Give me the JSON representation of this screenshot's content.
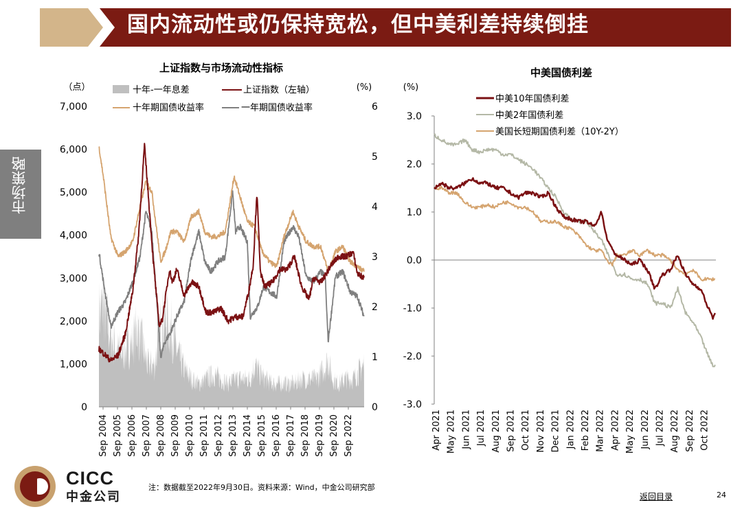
{
  "header": {
    "title": "国内流动性或仍保持宽松，但中美利差持续倒挂"
  },
  "side_tab": {
    "label": "市场策略"
  },
  "footer": {
    "note": "注：数据截至2022年9月30日。资料来源：Wind，中金公司研究部",
    "back_link": "返回目录",
    "page_number": "24",
    "logo_text": "CICC",
    "logo_cn": "中金公司"
  },
  "colors": {
    "maroon": "#7b1113",
    "gray": "#7f7f7f",
    "tan": "#d5a46f",
    "sage": "#b4b8a6",
    "fill": "#bfbfbf",
    "banner": "#7b1b13",
    "banner_tan": "#d3b58a"
  },
  "chart_data": [
    {
      "type": "line",
      "title": "上证指数与市场流动性指标",
      "left_axis_unit": "（点）",
      "right_axis_unit": "(%)",
      "left_ylim": [
        0,
        7000
      ],
      "left_ticks": [
        "0",
        "1,000",
        "2,000",
        "3,000",
        "4,000",
        "5,000",
        "6,000",
        "7,000"
      ],
      "right_ylim": [
        0,
        6
      ],
      "right_ticks": [
        "0",
        "1",
        "2",
        "3",
        "4",
        "5",
        "6"
      ],
      "x_tick_labels": [
        "Sep 2004",
        "Sep 2005",
        "Sep 2006",
        "Sep 2007",
        "Sep 2008",
        "Sep 2009",
        "Sep 2010",
        "Sep 2011",
        "Sep 2012",
        "Sep 2013",
        "Sep 2014",
        "Sep 2015",
        "Sep 2016",
        "Sep 2017",
        "Sep 2018",
        "Sep 2019",
        "Sep 2020",
        "Sep 2022"
      ],
      "legend": [
        "十年-一年息差",
        "上证指数（左轴）",
        "十年期国债收益率",
        "一年期国债收益率"
      ],
      "series": [
        {
          "name": "十年-一年息差",
          "axis": "right",
          "kind": "area",
          "x": [
            2004.7,
            2005.0,
            2005.5,
            2006.0,
            2006.5,
            2007.0,
            2007.3,
            2007.7,
            2008.0,
            2008.5,
            2008.9,
            2009.2,
            2009.6,
            2010.0,
            2010.5,
            2011.0,
            2011.5,
            2012.0,
            2012.5,
            2013.0,
            2013.5,
            2014.0,
            2014.5,
            2015.0,
            2015.3,
            2015.7,
            2016.0,
            2016.5,
            2017.0,
            2017.5,
            2018.0,
            2018.5,
            2019.0,
            2019.5,
            2020.0,
            2020.3,
            2020.6,
            2021.0,
            2021.5,
            2022.0,
            2022.5,
            2022.75
          ],
          "values": [
            2.0,
            2.2,
            1.5,
            1.2,
            1.2,
            1.4,
            1.7,
            1.3,
            0.9,
            0.9,
            1.8,
            1.9,
            1.7,
            1.2,
            0.8,
            0.6,
            0.5,
            0.6,
            0.7,
            0.6,
            0.5,
            0.6,
            0.6,
            0.6,
            0.9,
            0.7,
            0.6,
            0.5,
            0.5,
            0.5,
            0.5,
            0.6,
            0.6,
            0.6,
            0.8,
            1.0,
            0.6,
            0.5,
            0.6,
            0.6,
            0.8,
            0.9
          ]
        },
        {
          "name": "上证指数（左轴）",
          "axis": "left",
          "x": [
            2004.7,
            2005.0,
            2005.5,
            2006.0,
            2006.5,
            2007.0,
            2007.4,
            2007.8,
            2008.0,
            2008.4,
            2008.8,
            2009.0,
            2009.5,
            2009.7,
            2010.0,
            2010.5,
            2011.0,
            2011.5,
            2012.0,
            2012.5,
            2013.0,
            2013.5,
            2014.0,
            2014.5,
            2014.9,
            2015.2,
            2015.45,
            2015.7,
            2016.0,
            2016.5,
            2017.0,
            2017.5,
            2018.0,
            2018.5,
            2019.0,
            2019.3,
            2019.8,
            2020.0,
            2020.5,
            2021.0,
            2021.5,
            2022.0,
            2022.3,
            2022.75
          ],
          "values": [
            1350,
            1250,
            1080,
            1200,
            1700,
            2700,
            4000,
            6100,
            5200,
            3400,
            1900,
            2000,
            3200,
            2900,
            3200,
            2600,
            2900,
            2800,
            2200,
            2200,
            2300,
            2000,
            2100,
            2100,
            2700,
            3300,
            5000,
            3100,
            2800,
            2900,
            3200,
            3200,
            3500,
            2800,
            2500,
            3000,
            2900,
            3000,
            3300,
            3500,
            3500,
            3600,
            3100,
            3000
          ]
        },
        {
          "name": "十年期国债收益率",
          "axis": "right",
          "x": [
            2004.7,
            2005.0,
            2005.5,
            2006.0,
            2006.5,
            2007.0,
            2007.5,
            2007.9,
            2008.3,
            2008.9,
            2009.2,
            2009.6,
            2010.0,
            2010.5,
            2011.0,
            2011.5,
            2011.9,
            2012.3,
            2012.8,
            2013.3,
            2013.9,
            2014.3,
            2014.8,
            2015.3,
            2015.8,
            2016.3,
            2016.8,
            2017.3,
            2017.9,
            2018.3,
            2018.8,
            2019.3,
            2019.8,
            2020.3,
            2020.8,
            2021.3,
            2021.8,
            2022.3,
            2022.75
          ],
          "values": [
            5.2,
            4.6,
            3.4,
            3.0,
            3.1,
            3.3,
            4.0,
            4.5,
            4.3,
            2.9,
            3.1,
            3.5,
            3.5,
            3.3,
            3.8,
            3.9,
            3.5,
            3.4,
            3.4,
            3.5,
            4.6,
            4.2,
            3.7,
            3.6,
            3.1,
            2.9,
            2.8,
            3.4,
            3.9,
            3.6,
            3.3,
            3.2,
            3.2,
            2.7,
            3.1,
            3.2,
            2.9,
            2.8,
            2.7
          ]
        },
        {
          "name": "一年期国债收益率",
          "axis": "right",
          "x": [
            2004.7,
            2005.0,
            2005.5,
            2006.0,
            2006.5,
            2007.0,
            2007.5,
            2007.9,
            2008.3,
            2008.9,
            2009.2,
            2009.6,
            2010.0,
            2010.5,
            2011.0,
            2011.5,
            2011.9,
            2012.3,
            2012.8,
            2013.3,
            2013.8,
            2014.0,
            2014.3,
            2014.8,
            2015.0,
            2015.5,
            2015.9,
            2016.3,
            2016.8,
            2017.3,
            2017.9,
            2018.3,
            2018.8,
            2019.3,
            2019.8,
            2020.1,
            2020.3,
            2020.8,
            2021.3,
            2021.8,
            2022.3,
            2022.75
          ],
          "values": [
            3.1,
            2.5,
            1.6,
            1.9,
            2.1,
            2.5,
            3.0,
            3.9,
            3.5,
            1.0,
            1.3,
            1.5,
            1.8,
            2.1,
            3.0,
            3.5,
            2.9,
            2.7,
            2.9,
            3.0,
            4.3,
            3.5,
            3.6,
            3.3,
            1.8,
            2.0,
            2.4,
            2.3,
            2.2,
            3.3,
            3.6,
            3.4,
            2.6,
            2.5,
            2.7,
            2.6,
            1.3,
            2.6,
            2.7,
            2.3,
            2.2,
            1.8
          ]
        }
      ]
    },
    {
      "type": "line",
      "title": "中美国债利差",
      "axis_unit": "(%)",
      "ylim": [
        -3.0,
        3.0
      ],
      "y_ticks": [
        "-3.0",
        "-2.0",
        "-1.0",
        "0.0",
        "1.0",
        "2.0",
        "3.0"
      ],
      "x_tick_labels": [
        "Apr 2021",
        "May 2021",
        "Jun 2021",
        "Jul 2021",
        "Aug 2021",
        "Sep 2021",
        "Oct 2021",
        "Nov 2021",
        "Dec 2021",
        "Jan 2022",
        "Feb 2022",
        "Mar 2022",
        "Apr 2022",
        "May 2022",
        "Jun 2022",
        "Jul 2022",
        "Aug 2022",
        "Sep 2022",
        "Oct 2022"
      ],
      "legend": [
        "中美10年国债利差",
        "中美2年国债利差",
        "美国长短期国债利差（10Y-2Y）"
      ],
      "series": [
        {
          "name": "中美10年国债利差",
          "x": [
            0,
            0.5,
            1,
            1.5,
            2,
            2.5,
            3,
            3.5,
            4,
            4.5,
            5,
            5.5,
            6,
            6.5,
            7,
            7.5,
            8,
            8.5,
            9,
            9.5,
            10,
            10.5,
            11,
            11.3,
            11.7,
            12,
            12.5,
            13,
            13.5,
            14,
            14.5,
            15,
            15.5,
            16,
            16.5,
            17,
            17.5,
            18,
            18.3,
            18.5
          ],
          "values": [
            1.5,
            1.6,
            1.5,
            1.5,
            1.6,
            1.7,
            1.6,
            1.6,
            1.5,
            1.5,
            1.4,
            1.3,
            1.4,
            1.4,
            1.3,
            1.4,
            1.1,
            0.9,
            0.85,
            0.8,
            0.8,
            0.7,
            1.0,
            0.5,
            0.2,
            0.1,
            0.0,
            -0.1,
            0.0,
            -0.2,
            -0.6,
            -0.3,
            -0.2,
            0.1,
            -0.3,
            -0.5,
            -0.6,
            -1.0,
            -1.2,
            -1.1
          ]
        },
        {
          "name": "中美2年国债利差",
          "x": [
            0,
            0.5,
            1,
            1.5,
            2,
            2.5,
            3,
            3.5,
            4,
            4.5,
            5,
            5.5,
            6,
            6.5,
            7,
            7.5,
            8,
            8.5,
            9,
            9.5,
            10,
            10.5,
            11,
            11.3,
            11.7,
            12,
            12.5,
            13,
            13.5,
            14,
            14.5,
            15,
            15.5,
            16,
            16.5,
            17,
            17.5,
            18,
            18.3,
            18.5
          ],
          "values": [
            2.6,
            2.5,
            2.4,
            2.4,
            2.5,
            2.3,
            2.25,
            2.3,
            2.3,
            2.2,
            2.2,
            2.1,
            2.0,
            1.9,
            1.7,
            1.5,
            1.3,
            1.0,
            0.85,
            0.8,
            0.8,
            0.6,
            0.4,
            0.2,
            -0.1,
            -0.3,
            -0.3,
            -0.4,
            -0.4,
            -0.5,
            -0.9,
            -0.9,
            -1.0,
            -0.6,
            -1.1,
            -1.3,
            -1.6,
            -2.0,
            -2.2,
            -2.2
          ]
        },
        {
          "name": "美国长短期国债利差（10Y-2Y）",
          "x": [
            0,
            0.5,
            1,
            1.5,
            2,
            2.5,
            3,
            3.5,
            4,
            4.5,
            5,
            5.5,
            6,
            6.5,
            7,
            7.5,
            8,
            8.5,
            9,
            9.5,
            10,
            10.5,
            11,
            11.3,
            11.7,
            12,
            12.5,
            13,
            13.5,
            14,
            14.5,
            15,
            15.5,
            16,
            16.5,
            17,
            17.5,
            18,
            18.3,
            18.5
          ],
          "values": [
            1.5,
            1.5,
            1.4,
            1.4,
            1.2,
            1.1,
            1.1,
            1.15,
            1.1,
            1.2,
            1.2,
            1.1,
            1.1,
            1.0,
            0.8,
            0.8,
            0.8,
            0.7,
            0.65,
            0.5,
            0.3,
            0.2,
            0.2,
            0.0,
            -0.1,
            0.1,
            0.1,
            0.2,
            0.1,
            0.2,
            0.1,
            0.1,
            0.0,
            -0.2,
            -0.3,
            -0.2,
            -0.4,
            -0.4,
            -0.4,
            -0.4
          ]
        }
      ]
    }
  ]
}
